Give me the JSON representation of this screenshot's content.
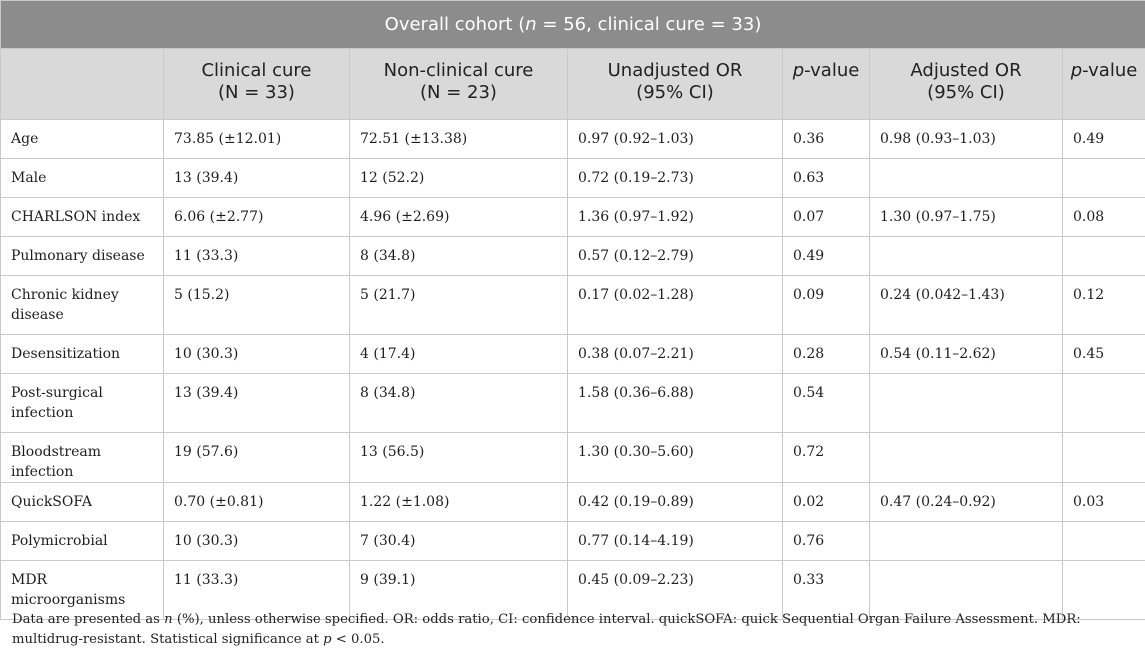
{
  "table": {
    "banner": {
      "prefix": "Overall cohort (",
      "n_var": "n",
      "suffix": " = 56, clinical cure = 33)"
    },
    "columns": [
      {
        "line1": "",
        "line2": ""
      },
      {
        "line1": "Clinical cure",
        "line2": "(N = 33)"
      },
      {
        "line1": "Non-clinical cure",
        "line2": "(N = 23)"
      },
      {
        "line1": "Unadjusted OR",
        "line2": "(95% CI)"
      },
      {
        "line1": "",
        "line2": ""
      },
      {
        "line1": "Adjusted OR",
        "line2": "(95% CI)"
      },
      {
        "line1": "",
        "line2": ""
      }
    ],
    "pvalue_header": {
      "p": "p",
      "rest": "-value"
    },
    "rows": [
      {
        "label": "Age",
        "cure": "73.85 (±12.01)",
        "noncure": "72.51 (±13.38)",
        "or_unadj": "0.97 (0.92–1.03)",
        "p_unadj": "0.36",
        "or_adj": "0.98 (0.93–1.03)",
        "p_adj": "0.49"
      },
      {
        "label": "Male",
        "cure": "13 (39.4)",
        "noncure": "12 (52.2)",
        "or_unadj": "0.72 (0.19–2.73)",
        "p_unadj": "0.63",
        "or_adj": "",
        "p_adj": ""
      },
      {
        "label": "CHARLSON index",
        "cure": "6.06 (±2.77)",
        "noncure": "4.96 (±2.69)",
        "or_unadj": "1.36 (0.97–1.92)",
        "p_unadj": "0.07",
        "or_adj": "1.30 (0.97–1.75)",
        "p_adj": "0.08"
      },
      {
        "label": "Pulmonary disease",
        "cure": "11 (33.3)",
        "noncure": "8 (34.8)",
        "or_unadj": "0.57 (0.12–2.79)",
        "p_unadj": "0.49",
        "or_adj": "",
        "p_adj": ""
      },
      {
        "label": "Chronic kidney disease",
        "cure": "5 (15.2)",
        "noncure": "5 (21.7)",
        "or_unadj": "0.17 (0.02–1.28)",
        "p_unadj": "0.09",
        "or_adj": "0.24 (0.042–1.43)",
        "p_adj": "0.12"
      },
      {
        "label": "Desensitization",
        "cure": "10 (30.3)",
        "noncure": "4 (17.4)",
        "or_unadj": "0.38 (0.07–2.21)",
        "p_unadj": "0.28",
        "or_adj": "0.54 (0.11–2.62)",
        "p_adj": "0.45"
      },
      {
        "label": "Post-surgical infection",
        "cure": "13 (39.4)",
        "noncure": "8 (34.8)",
        "or_unadj": "1.58 (0.36–6.88)",
        "p_unadj": "0.54",
        "or_adj": "",
        "p_adj": ""
      },
      {
        "label": "Bloodstream infection",
        "cure": "19 (57.6)",
        "noncure": "13 (56.5)",
        "or_unadj": "1.30 (0.30–5.60)",
        "p_unadj": "0.72",
        "or_adj": "",
        "p_adj": ""
      },
      {
        "label": "QuickSOFA",
        "cure": "0.70 (±0.81)",
        "noncure": "1.22 (±1.08)",
        "or_unadj": "0.42 (0.19–0.89)",
        "p_unadj": "0.02",
        "or_adj": "0.47 (0.24–0.92)",
        "p_adj": "0.03"
      },
      {
        "label": "Polymicrobial",
        "cure": "10 (30.3)",
        "noncure": "7 (30.4)",
        "or_unadj": "0.77 (0.14–4.19)",
        "p_unadj": "0.76",
        "or_adj": "",
        "p_adj": ""
      },
      {
        "label": "MDR microorganisms",
        "cure": "11 (33.3)",
        "noncure": "9 (39.1)",
        "or_unadj": "0.45 (0.09–2.23)",
        "p_unadj": "0.33",
        "or_adj": "",
        "p_adj": ""
      }
    ]
  },
  "footnote": {
    "pre": "Data are presented as ",
    "n_var": "n",
    "mid": " (%), unless otherwise specified. OR: odds ratio, CI: confidence interval. quickSOFA: quick Sequential Organ Failure Assessment. MDR: multidrug-resistant. Statistical significance at ",
    "p_var": "p",
    "post": " < 0.05."
  },
  "colors": {
    "banner_bg": "#8c8c8c",
    "header_bg": "#d9d9d9",
    "border": "#c9c9c9"
  }
}
